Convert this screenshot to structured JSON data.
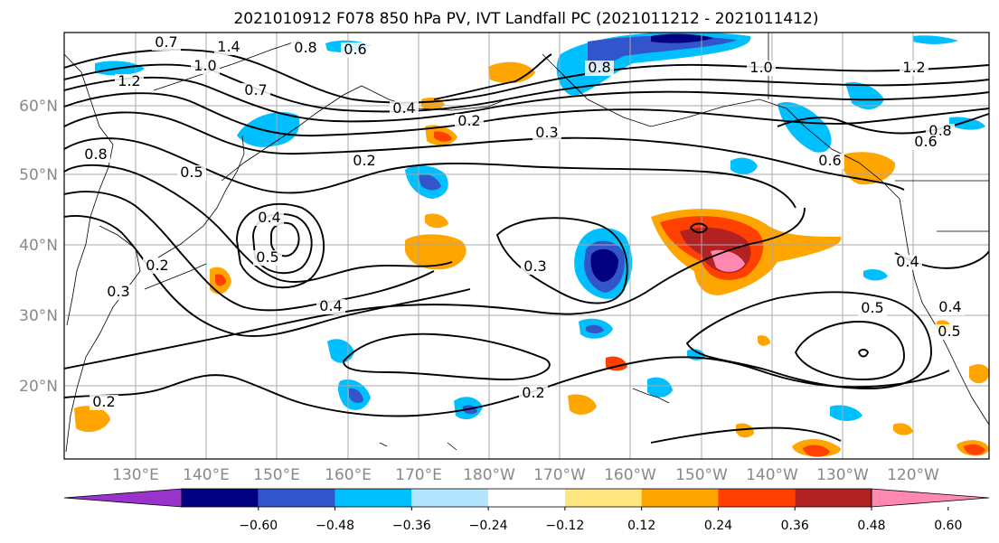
{
  "title": "2021010912 F078 850 hPa PV, IVT Landfall PC (2021011212 - 2021011412)",
  "lat_labels": [
    "60°N",
    "50°N",
    "40°N",
    "30°N",
    "20°N"
  ],
  "lon_labels": [
    "130°E",
    "140°E",
    "150°E",
    "160°E",
    "170°E",
    "180°W",
    "170°W",
    "160°W",
    "150°W",
    "140°W",
    "130°W",
    "120°W"
  ],
  "colorbar": {
    "colors": [
      "#9933cc",
      "#000080",
      "#3355cc",
      "#00bfff",
      "#b3e5ff",
      "#ffffff",
      "#ffe680",
      "#ffa500",
      "#ff4000",
      "#b22222",
      "#ff88b0"
    ],
    "tick_labels": [
      "−0.60",
      "−0.48",
      "−0.36",
      "−0.24",
      "−0.12",
      "0.12",
      "0.24",
      "0.36",
      "0.48",
      "0.60"
    ]
  },
  "contour_labels": [
    "1.4",
    "1.0",
    "1.2",
    "0.8",
    "0.7",
    "0.6",
    "0.5",
    "0.4",
    "0.4",
    "0.2",
    "0.3",
    "0.2",
    "1.0",
    "0.8",
    "0.5",
    "0.4",
    "0.5",
    "0.2",
    "0.3",
    "0.4",
    "0.3",
    "0.2",
    "0.2",
    "0.4",
    "0.5",
    "0.6",
    "0.7",
    "0.8",
    "1.2",
    "0.6",
    "0.8"
  ],
  "line_color": "#000000",
  "grid_color": "#a8a8a8"
}
